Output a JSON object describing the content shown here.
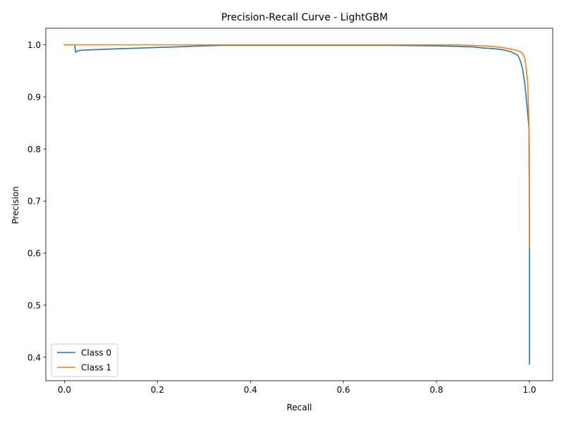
{
  "chart_data": {
    "type": "line",
    "title": "Precision-Recall Curve - LightGBM",
    "xlabel": "Recall",
    "ylabel": "Precision",
    "xlim": [
      -0.04,
      1.05
    ],
    "ylim": [
      0.355,
      1.032
    ],
    "xticks": [
      0.0,
      0.2,
      0.4,
      0.6,
      0.8,
      1.0
    ],
    "xtick_labels": [
      "0.0",
      "0.2",
      "0.4",
      "0.6",
      "0.8",
      "1.0"
    ],
    "yticks": [
      0.4,
      0.5,
      0.6,
      0.7,
      0.8,
      0.9,
      1.0
    ],
    "ytick_labels": [
      "0.4",
      "0.5",
      "0.6",
      "0.7",
      "0.8",
      "0.9",
      "1.0"
    ],
    "grid": false,
    "legend_position": "lower-left",
    "series": [
      {
        "name": "Class 0",
        "color": "#1f77b4",
        "x": [
          0.0,
          0.022,
          0.024,
          0.03,
          0.04,
          0.1,
          0.2,
          0.3,
          0.34,
          0.5,
          0.7,
          0.8,
          0.85,
          0.88,
          0.9,
          0.92,
          0.94,
          0.955,
          0.965,
          0.975,
          0.98,
          0.985,
          0.99,
          0.994,
          0.997,
          0.999,
          1.0,
          1.0
        ],
        "y": [
          1.0,
          1.0,
          0.986,
          0.989,
          0.99,
          0.992,
          0.995,
          0.998,
          0.999,
          0.999,
          0.999,
          0.998,
          0.997,
          0.996,
          0.994,
          0.993,
          0.991,
          0.988,
          0.985,
          0.98,
          0.97,
          0.955,
          0.925,
          0.89,
          0.86,
          0.84,
          0.6,
          0.387
        ]
      },
      {
        "name": "Class 1",
        "color": "#ff7f0e",
        "x": [
          0.0,
          0.1,
          0.3,
          0.5,
          0.7,
          0.84,
          0.88,
          0.9,
          0.92,
          0.94,
          0.96,
          0.975,
          0.985,
          0.99,
          0.993,
          0.996,
          0.998,
          0.999,
          1.0,
          1.0
        ],
        "y": [
          1.0,
          1.0,
          1.0,
          1.0,
          1.0,
          1.0,
          0.999,
          0.998,
          0.997,
          0.995,
          0.992,
          0.989,
          0.984,
          0.975,
          0.955,
          0.93,
          0.88,
          0.84,
          0.8,
          0.613
        ]
      }
    ]
  }
}
